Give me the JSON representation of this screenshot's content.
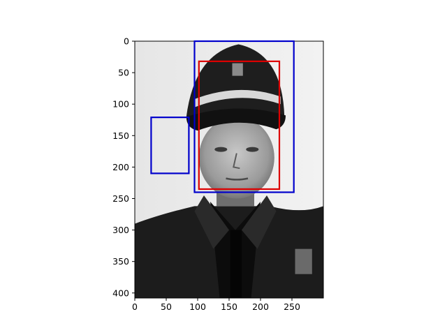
{
  "chart_data": {
    "type": "image",
    "xlim": [
      0,
      300
    ],
    "ylim": [
      408,
      0
    ],
    "y_inverted": true,
    "x_ticks": [
      0,
      50,
      100,
      150,
      200,
      250
    ],
    "y_ticks": [
      0,
      50,
      100,
      150,
      200,
      250,
      300,
      350,
      400
    ],
    "x_tick_labels": [
      "0",
      "50",
      "100",
      "150",
      "200",
      "250"
    ],
    "y_tick_labels": [
      "0",
      "50",
      "100",
      "150",
      "200",
      "250",
      "300",
      "350",
      "400"
    ],
    "image": {
      "subject": "grayscale portrait photograph",
      "colormap": "gray"
    },
    "boxes": [
      {
        "x0": 95,
        "y0": 0,
        "x1": 253,
        "y1": 240,
        "color": "#0000cc"
      },
      {
        "x0": 26,
        "y0": 121,
        "x1": 86,
        "y1": 210,
        "color": "#0000cc"
      },
      {
        "x0": 102,
        "y0": 32,
        "x1": 230,
        "y1": 235,
        "color": "#dd0000"
      }
    ],
    "grid": false
  }
}
